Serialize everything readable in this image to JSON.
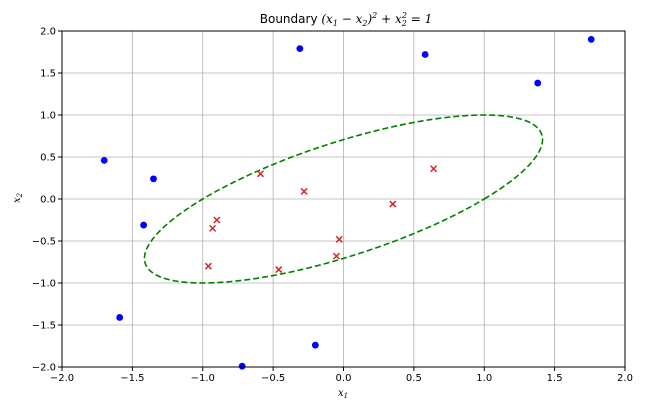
{
  "chart_data": {
    "type": "scatter",
    "title_prefix": "Boundary ",
    "title_math": {
      "open": "(",
      "x1": "x",
      "sub1": "1",
      "minus": " − ",
      "x2": "x",
      "sub2": "2",
      "close": ")",
      "sup_a": "2",
      "plus": " + ",
      "x2b": "x",
      "sub2b": "2",
      "sup_b": "2",
      "eq": " = 1"
    },
    "xlabel": {
      "var": "x",
      "sub": "1"
    },
    "ylabel": {
      "var": "x",
      "sub": "2"
    },
    "xlim": [
      -2.0,
      2.0
    ],
    "ylim": [
      -2.0,
      2.0
    ],
    "xticks": [
      -2.0,
      -1.5,
      -1.0,
      -0.5,
      0.0,
      0.5,
      1.0,
      1.5,
      2.0
    ],
    "yticks": [
      -2.0,
      -1.5,
      -1.0,
      -0.5,
      0.0,
      0.5,
      1.0,
      1.5,
      2.0
    ],
    "xtick_labels": [
      "−2.0",
      "−1.5",
      "−1.0",
      "−0.5",
      "0.0",
      "0.5",
      "1.0",
      "1.5",
      "2.0"
    ],
    "ytick_labels": [
      "−2.0",
      "−1.5",
      "−1.0",
      "−0.5",
      "0.0",
      "0.5",
      "1.0",
      "1.5",
      "2.0"
    ],
    "grid": true,
    "series": [
      {
        "marker": "circle",
        "color": "#0000ff",
        "points": [
          [
            -1.7,
            0.46
          ],
          [
            -1.35,
            0.24
          ],
          [
            -1.42,
            -0.31
          ],
          [
            -1.59,
            -1.41
          ],
          [
            -0.72,
            -1.99
          ],
          [
            -0.2,
            -1.74
          ],
          [
            -0.31,
            1.79
          ],
          [
            0.58,
            1.72
          ],
          [
            1.38,
            1.38
          ],
          [
            1.76,
            1.9
          ]
        ]
      },
      {
        "marker": "x",
        "color": "#d62728",
        "points": [
          [
            -0.59,
            0.3
          ],
          [
            -0.28,
            0.09
          ],
          [
            -0.9,
            -0.25
          ],
          [
            -0.93,
            -0.35
          ],
          [
            -0.96,
            -0.8
          ],
          [
            -0.46,
            -0.84
          ],
          [
            -0.03,
            -0.48
          ],
          [
            -0.05,
            -0.68
          ],
          [
            0.35,
            -0.06
          ],
          [
            0.64,
            0.36
          ]
        ]
      }
    ],
    "boundary": {
      "equation_lhs_coeffs": {
        "a": 1,
        "b": -1
      },
      "radius_sq": 1,
      "color": "#008000",
      "style": "dashed"
    }
  }
}
